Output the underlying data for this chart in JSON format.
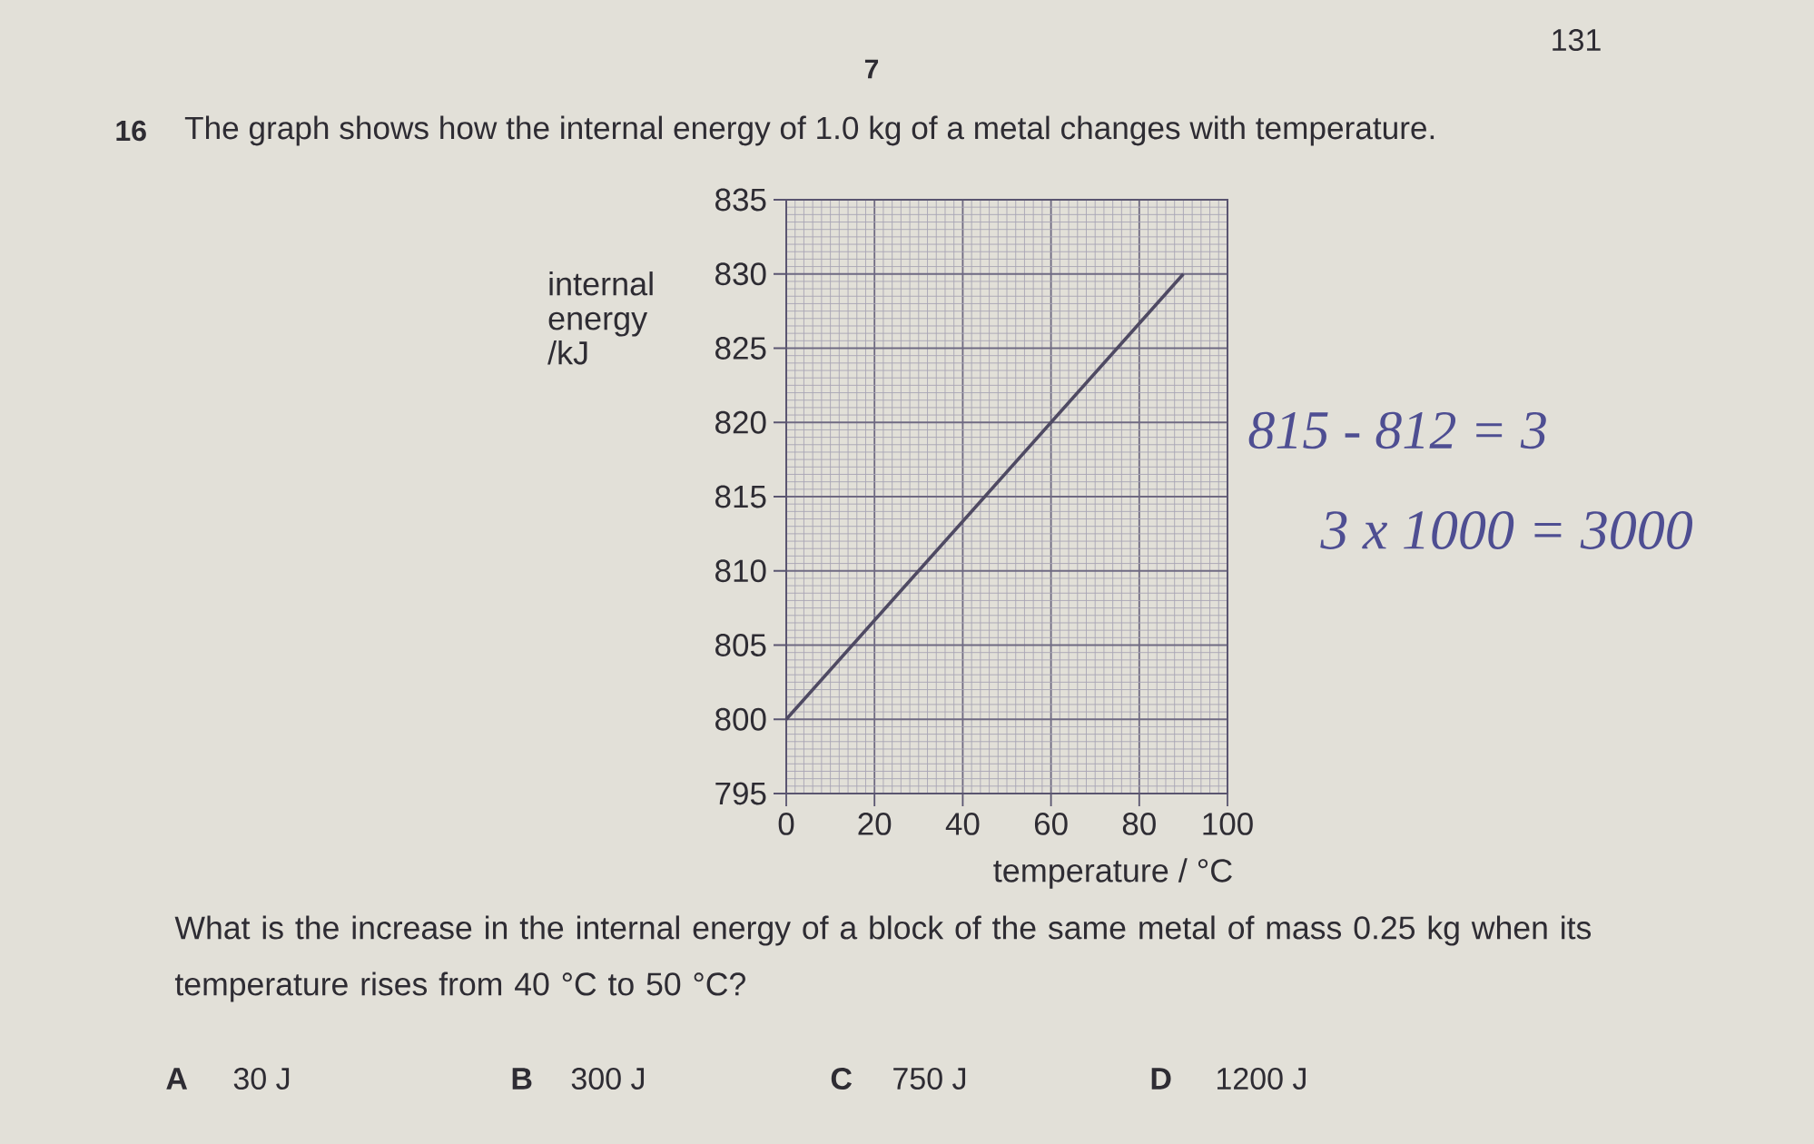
{
  "chart_data": {
    "type": "line",
    "title": "The graph shows how the internal energy of 1.0 kg of a metal changes with temperature.",
    "xlabel": "temperature / °C",
    "ylabel": "internal energy /kJ",
    "x": [
      0,
      90
    ],
    "values": [
      800,
      830
    ],
    "color": "#4f4a63",
    "xlim": [
      0,
      100
    ],
    "ylim": [
      795,
      835
    ],
    "xticks": [
      0,
      20,
      40,
      60,
      80,
      100
    ],
    "yticks": [
      795,
      800,
      805,
      810,
      815,
      820,
      825,
      830,
      835
    ],
    "grid": true,
    "annotations": [
      "131",
      "7",
      "16",
      "What is the increase in the internal energy of a block of the same metal of mass 0.25 kg when its temperature rises from 40 °C to 50 °C?",
      "A",
      "30 J",
      "B",
      "300 J",
      "C",
      "750 J",
      "D",
      "1200 J",
      "815 - 812 = 3",
      "3 x 1000 = 3000"
    ]
  }
}
